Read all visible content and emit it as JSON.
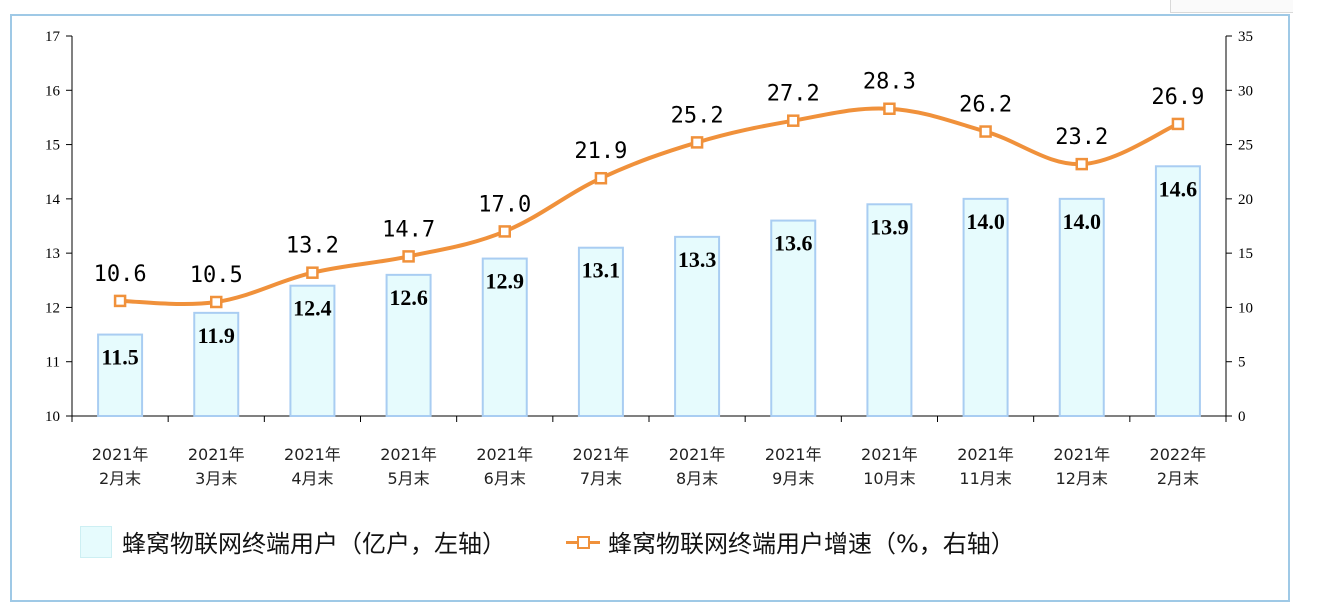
{
  "chart_data": {
    "type": "bar",
    "categories": [
      [
        "2021年",
        "2月末"
      ],
      [
        "2021年",
        "3月末"
      ],
      [
        "2021年",
        "4月末"
      ],
      [
        "2021年",
        "5月末"
      ],
      [
        "2021年",
        "6月末"
      ],
      [
        "2021年",
        "7月末"
      ],
      [
        "2021年",
        "8月末"
      ],
      [
        "2021年",
        "9月末"
      ],
      [
        "2021年",
        "10月末"
      ],
      [
        "2021年",
        "11月末"
      ],
      [
        "2021年",
        "12月末"
      ],
      [
        "2022年",
        "2月末"
      ]
    ],
    "series": [
      {
        "name": "蜂窝物联网终端用户（亿户，左轴）",
        "type": "bar",
        "axis": "left",
        "values": [
          11.5,
          11.9,
          12.4,
          12.6,
          12.9,
          13.1,
          13.3,
          13.6,
          13.9,
          14.0,
          14.0,
          14.6
        ],
        "labels": [
          "11.5",
          "11.9",
          "12.4",
          "12.6",
          "12.9",
          "13.1",
          "13.3",
          "13.6",
          "13.9",
          "14.0",
          "14.0",
          "14.6"
        ]
      },
      {
        "name": "蜂窝物联网终端用户增速（%，右轴）",
        "type": "line",
        "axis": "right",
        "values": [
          10.6,
          10.5,
          13.2,
          14.7,
          17.0,
          21.9,
          25.2,
          27.2,
          28.3,
          26.2,
          23.2,
          26.9
        ],
        "labels": [
          "10.6",
          "10.5",
          "13.2",
          "14.7",
          "17.0",
          "21.9",
          "25.2",
          "27.2",
          "28.3",
          "26.2",
          "23.2",
          "26.9"
        ]
      }
    ],
    "ylim_left": [
      10,
      17
    ],
    "yticks_left": [
      "10",
      "11",
      "12",
      "13",
      "14",
      "15",
      "16",
      "17"
    ],
    "ylim_right": [
      0,
      35
    ],
    "yticks_right": [
      "0",
      "5",
      "10",
      "15",
      "20",
      "25",
      "30",
      "35"
    ],
    "grid": false,
    "legend_position": "bottom",
    "colors": {
      "bar_fill": "#e6fbfd",
      "bar_stroke": "#a9cdf2",
      "line": "#f0913b",
      "axis": "#000000"
    }
  }
}
